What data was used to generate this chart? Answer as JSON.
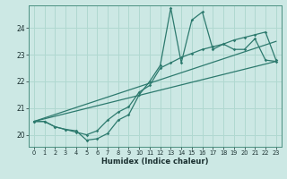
{
  "xlabel": "Humidex (Indice chaleur)",
  "bg_color": "#cce8e4",
  "grid_color": "#b0d8d0",
  "line_color": "#2d7a6e",
  "xlim": [
    -0.5,
    23.5
  ],
  "ylim": [
    19.55,
    24.85
  ],
  "xticks": [
    0,
    1,
    2,
    3,
    4,
    5,
    6,
    7,
    8,
    9,
    10,
    11,
    12,
    13,
    14,
    15,
    16,
    17,
    18,
    19,
    20,
    21,
    22,
    23
  ],
  "yticks": [
    20,
    21,
    22,
    23,
    24
  ],
  "line1_x": [
    0,
    1,
    2,
    3,
    4,
    5,
    6,
    7,
    8,
    9,
    10,
    11,
    12,
    13,
    14,
    15,
    16,
    17,
    18,
    19,
    20,
    21,
    22,
    23
  ],
  "line1_y": [
    20.5,
    20.5,
    20.3,
    20.2,
    20.15,
    19.8,
    19.85,
    20.05,
    20.55,
    20.75,
    21.5,
    22.0,
    22.6,
    24.75,
    22.7,
    24.3,
    24.6,
    23.2,
    23.4,
    23.2,
    23.2,
    23.6,
    22.8,
    22.75
  ],
  "line2_x": [
    0,
    1,
    2,
    3,
    4,
    5,
    6,
    7,
    8,
    9,
    10,
    11,
    12,
    13,
    14,
    15,
    16,
    17,
    18,
    19,
    20,
    21,
    22,
    23
  ],
  "line2_y": [
    20.5,
    20.5,
    20.3,
    20.2,
    20.1,
    20.0,
    20.15,
    20.55,
    20.85,
    21.05,
    21.6,
    21.85,
    22.5,
    22.7,
    22.9,
    23.05,
    23.2,
    23.3,
    23.4,
    23.55,
    23.65,
    23.75,
    23.85,
    22.8
  ],
  "line3_x": [
    0,
    23
  ],
  "line3_y": [
    20.5,
    22.75
  ],
  "line4_x": [
    0,
    23
  ],
  "line4_y": [
    20.5,
    23.5
  ]
}
